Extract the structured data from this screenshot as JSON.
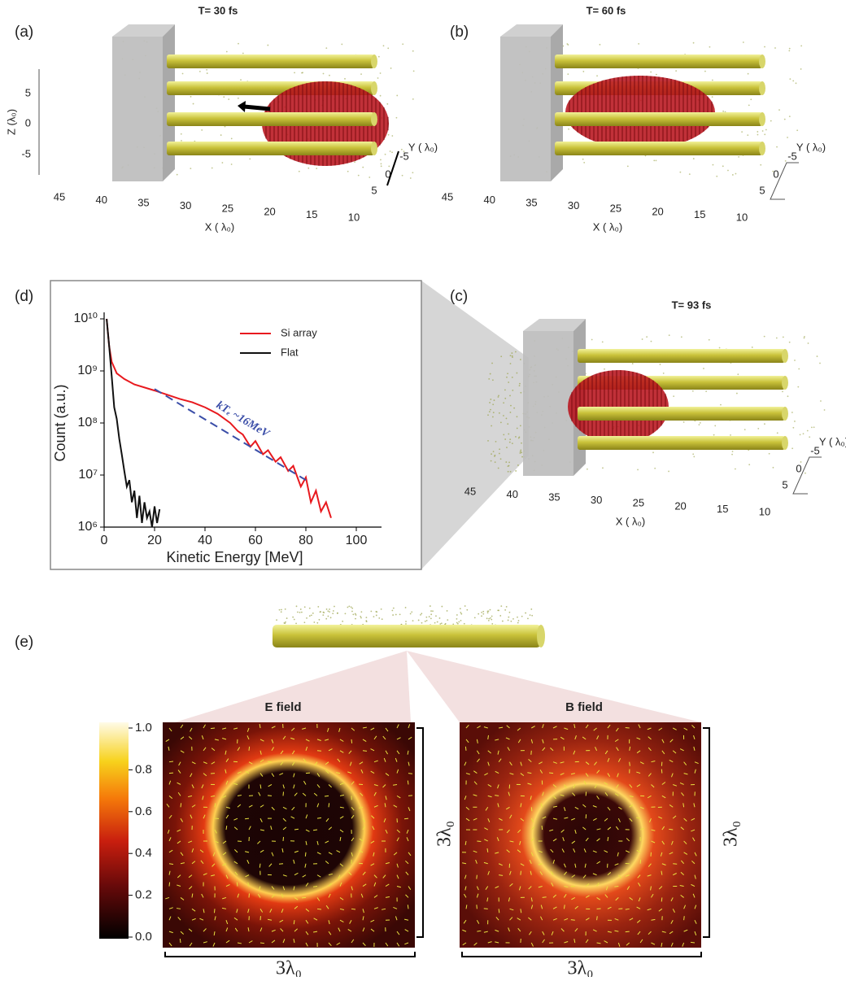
{
  "chart_data": {
    "type": "line",
    "log_y": true,
    "panel_label": "(d)",
    "xlabel": "Kinetic Energy [MeV]",
    "ylabel": "Count (a.u.)",
    "xlim": [
      0,
      110
    ],
    "xticks": [
      0,
      20,
      40,
      60,
      80,
      100
    ],
    "ylim": [
      1000000,
      10000000000
    ],
    "yticks": [
      {
        "value": 1000000,
        "label": "10⁶"
      },
      {
        "value": 10000000,
        "label": "10⁷"
      },
      {
        "value": 100000000,
        "label": "10⁸"
      },
      {
        "value": 1000000000,
        "label": "10⁹"
      },
      {
        "value": 10000000000,
        "label": "10¹⁰"
      }
    ],
    "legend": "upper right",
    "series": [
      {
        "name": "Si array",
        "color": "#e8191e",
        "x": [
          1,
          2,
          3,
          5,
          8,
          12,
          20,
          30,
          35,
          40,
          45,
          50,
          53,
          55,
          58,
          60,
          63,
          65,
          68,
          70,
          73,
          75,
          78,
          80,
          82,
          84,
          86,
          88,
          90
        ],
        "values": [
          10000000000,
          3000000000,
          1500000000,
          900000000,
          700000000,
          550000000,
          420000000,
          290000000,
          250000000,
          200000000,
          150000000,
          100000000,
          70000000,
          60000000,
          35000000,
          45000000,
          25000000,
          30000000,
          18000000,
          22000000,
          12000000,
          15000000,
          6000000,
          9000000,
          3000000,
          5000000,
          2000000,
          3000000,
          1500000
        ]
      },
      {
        "name": "Flat",
        "color": "#111111",
        "x": [
          1,
          2,
          3,
          4,
          5,
          6,
          7,
          8,
          9,
          10,
          11,
          12,
          13,
          14,
          15,
          16,
          17,
          18,
          19,
          20,
          21,
          22
        ],
        "values": [
          10000000000,
          3000000000,
          800000000,
          200000000,
          120000000,
          50000000,
          25000000,
          12000000,
          6000000,
          8000000,
          3000000,
          5000000,
          1500000,
          4000000,
          1200000,
          3000000,
          1500000,
          2000000,
          1000000,
          2500000,
          1200000,
          2200000
        ]
      }
    ],
    "fit": {
      "label": "kTₑ ~16MeV",
      "color": "#3b4ea8",
      "x": [
        20,
        80
      ],
      "values": [
        450000000,
        8000000
      ]
    }
  },
  "panels": [
    {
      "label": "(a)",
      "title": "T= 30 fs",
      "x_label": "X ( λ₀)",
      "y_label": "Y ( λ₀)",
      "z_label": "Z (λ₀)",
      "x_ticks": [
        45,
        40,
        35,
        30,
        25,
        20,
        15,
        10
      ],
      "y_ticks": [
        -5,
        0,
        5
      ],
      "z_ticks": [
        5,
        0,
        -5
      ]
    },
    {
      "label": "(b)",
      "title": "T= 60 fs",
      "x_label": "X ( λ₀)",
      "y_label": "Y ( λ₀)",
      "x_ticks": [
        45,
        40,
        35,
        30,
        25,
        20,
        15,
        10
      ],
      "y_ticks": [
        -5,
        0,
        5
      ]
    },
    {
      "label": "(c)",
      "title": "T= 93 fs",
      "x_label": "X ( λ₀)",
      "y_label": "Y ( λ₀)",
      "x_ticks": [
        45,
        40,
        35,
        30,
        25,
        20,
        15,
        10
      ],
      "y_ticks": [
        -5,
        0,
        5
      ]
    }
  ],
  "field_panel": {
    "label": "(e)",
    "e_title": "E field",
    "b_title": "B field",
    "size_label": "3λ₀",
    "colorbar_ticks": [
      {
        "value": 0,
        "label": "0.0"
      },
      0.2,
      0.4,
      0.6,
      0.8,
      {
        "value": 1,
        "label": "1.0"
      }
    ],
    "colorbar_lim": [
      0,
      1
    ]
  }
}
